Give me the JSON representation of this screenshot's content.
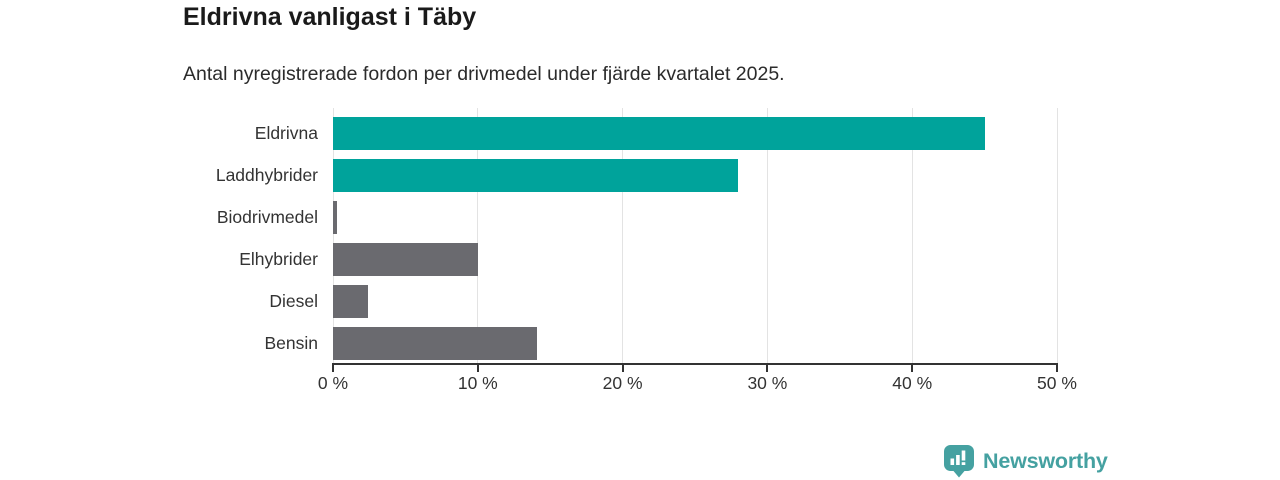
{
  "header": {
    "title": "Eldrivna vanligast i Täby",
    "subtitle": "Antal nyregistrerade fordon per drivmedel under fjärde kvartalet 2025."
  },
  "chart_data": {
    "type": "bar",
    "orientation": "horizontal",
    "title": "Eldrivna vanligast i Täby",
    "subtitle": "Antal nyregistrerade fordon per drivmedel under fjärde kvartalet 2025.",
    "categories": [
      "Eldrivna",
      "Laddhybrider",
      "Biodrivmedel",
      "Elhybrider",
      "Diesel",
      "Bensin"
    ],
    "values": [
      45,
      28,
      0.3,
      10,
      2.4,
      14.1
    ],
    "unit": "%",
    "bar_colors": [
      "#00a39b",
      "#00a39b",
      "#6a6a6f",
      "#6a6a6f",
      "#6a6a6f",
      "#6a6a6f"
    ],
    "xlabel": "",
    "ylabel": "",
    "xlim": [
      0,
      50
    ],
    "x_ticks": [
      {
        "value": 0,
        "label": "0 %"
      },
      {
        "value": 10,
        "label": "10 %"
      },
      {
        "value": 20,
        "label": "20 %"
      },
      {
        "value": 30,
        "label": "30 %"
      },
      {
        "value": 40,
        "label": "40 %"
      },
      {
        "value": 50,
        "label": "50 %"
      }
    ],
    "grid": true,
    "legend": false
  },
  "colors": {
    "accent_teal": "#00a39b",
    "bar_gray": "#6a6a6f",
    "gridline": "#e3e3e3",
    "axis": "#333333",
    "logo_teal": "#45a1a1"
  },
  "footer": {
    "brand": "Newsworthy",
    "logo_icon": "newsworthy-barchart-pin-icon"
  }
}
